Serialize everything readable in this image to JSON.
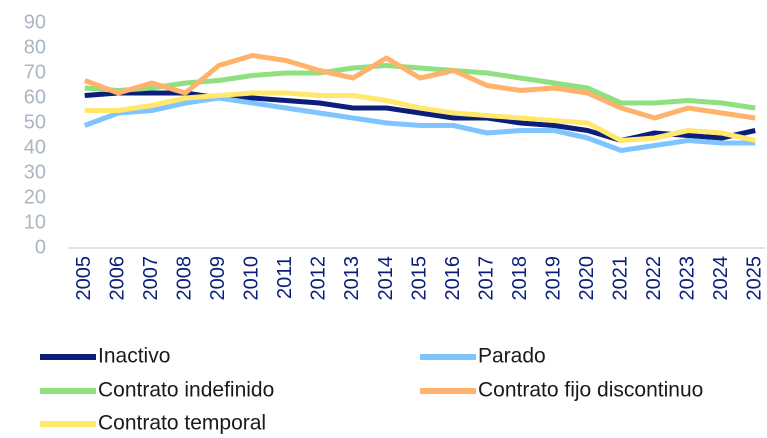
{
  "chart_data": {
    "type": "line",
    "categories": [
      "2005",
      "2006",
      "2007",
      "2008",
      "2009",
      "2010",
      "2011",
      "2012",
      "2013",
      "2014",
      "2015",
      "2016",
      "2017",
      "2018",
      "2019",
      "2020",
      "2021",
      "2022",
      "2023",
      "2024",
      "2025"
    ],
    "series": [
      {
        "name": "Inactivo",
        "color": "#0b1f7a",
        "values": [
          61,
          62,
          62,
          62,
          60,
          60,
          59,
          58,
          56,
          56,
          54,
          52,
          52,
          50,
          49,
          47,
          43,
          46,
          45,
          44,
          47
        ]
      },
      {
        "name": "Parado",
        "color": "#80c4ff",
        "values": [
          49,
          54,
          55,
          58,
          60,
          58,
          56,
          54,
          52,
          50,
          49,
          49,
          46,
          47,
          47,
          44,
          39,
          41,
          43,
          42,
          42
        ]
      },
      {
        "name": "Contrato indefinido",
        "color": "#8fe07f",
        "values": [
          64,
          63,
          64,
          66,
          67,
          69,
          70,
          70,
          72,
          73,
          72,
          71,
          70,
          68,
          66,
          64,
          58,
          58,
          59,
          58,
          56
        ]
      },
      {
        "name": "Contrato fijo discontinuo",
        "color": "#ffb26b",
        "values": [
          67,
          62,
          66,
          62,
          73,
          77,
          75,
          71,
          68,
          76,
          68,
          71,
          65,
          63,
          64,
          62,
          56,
          52,
          56,
          54,
          52
        ]
      },
      {
        "name": "Contrato temporal",
        "color": "#ffe86b",
        "values": [
          55,
          55,
          57,
          60,
          61,
          62,
          62,
          61,
          61,
          59,
          56,
          54,
          53,
          52,
          51,
          50,
          43,
          44,
          47,
          46,
          43
        ]
      }
    ],
    "ylim": [
      0,
      90
    ],
    "yticks": [
      0,
      10,
      20,
      30,
      40,
      50,
      60,
      70,
      80,
      90
    ],
    "grid": false
  }
}
